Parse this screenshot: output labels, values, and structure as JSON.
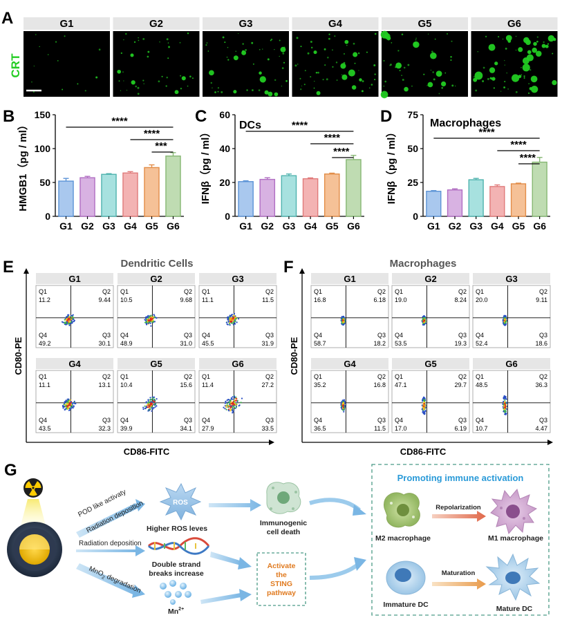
{
  "panel_letters": {
    "a": "A",
    "b": "B",
    "c": "C",
    "d": "D",
    "e": "E",
    "f": "F",
    "g": "G"
  },
  "panel_a": {
    "groups": [
      "G1",
      "G2",
      "G3",
      "G4",
      "G5",
      "G6"
    ],
    "channel_label": "CRT",
    "channel_color": "#22cc22",
    "cell_counts": [
      14,
      40,
      50,
      55,
      50,
      68
    ]
  },
  "colors": {
    "fills": [
      "#a9c8ee",
      "#d8b2e2",
      "#a7e1df",
      "#f3b3b3",
      "#f5c197",
      "#bfdcb2"
    ],
    "strokes": [
      "#5b93d6",
      "#b06dc2",
      "#4fb3ae",
      "#e07a7a",
      "#e28d48",
      "#86b773"
    ],
    "flow_box": "#f2f2f2",
    "dashed_green": "#4a9a86",
    "sting_orange": "#e07a1f",
    "title_blue": "#2a9ad8"
  },
  "chart_data": [
    {
      "type": "bar",
      "panel": "B",
      "title": "",
      "categories": [
        "G1",
        "G2",
        "G3",
        "G4",
        "G5",
        "G6"
      ],
      "values": [
        52,
        57,
        62,
        64,
        72,
        89
      ],
      "errors": [
        4,
        2,
        1,
        2,
        4,
        5
      ],
      "ylabel": "HMGB1（pg / ml）",
      "ylim": [
        0,
        150
      ],
      "yticks": [
        "0",
        "50",
        "100",
        "150"
      ],
      "significance": [
        {
          "from": 0,
          "to": 5,
          "label": "****"
        },
        {
          "from": 3,
          "to": 5,
          "label": "****"
        },
        {
          "from": 4,
          "to": 5,
          "label": "***"
        }
      ]
    },
    {
      "type": "bar",
      "panel": "C",
      "title": "DCs",
      "categories": [
        "G1",
        "G2",
        "G3",
        "G4",
        "G5",
        "G6"
      ],
      "values": [
        20.5,
        21.8,
        24,
        22.2,
        25,
        33.5
      ],
      "errors": [
        0.5,
        1,
        1,
        0.5,
        0.5,
        2.5
      ],
      "ylabel": "IFNβ（pg / ml）",
      "ylim": [
        0,
        60
      ],
      "yticks": [
        "0",
        "20",
        "40",
        "60"
      ],
      "significance": [
        {
          "from": 0,
          "to": 5,
          "label": "****"
        },
        {
          "from": 3,
          "to": 5,
          "label": "****"
        },
        {
          "from": 4,
          "to": 5,
          "label": "****"
        }
      ]
    },
    {
      "type": "bar",
      "panel": "D",
      "title": "Macrophages",
      "categories": [
        "G1",
        "G2",
        "G3",
        "G4",
        "G5",
        "G6"
      ],
      "values": [
        18.5,
        19.5,
        27,
        22,
        24,
        40
      ],
      "errors": [
        0.5,
        0.8,
        1,
        1.2,
        0.5,
        3.5
      ],
      "ylabel": "IFNβ（pg / ml）",
      "ylim": [
        0,
        75
      ],
      "yticks": [
        "0",
        "25",
        "50",
        "75"
      ],
      "significance": [
        {
          "from": 0,
          "to": 5,
          "label": "****"
        },
        {
          "from": 3,
          "to": 5,
          "label": "****"
        },
        {
          "from": 4,
          "to": 5,
          "label": "****"
        }
      ]
    },
    {
      "type": "scatter",
      "panel": "E",
      "title": "Dendritic Cells",
      "xlabel": "CD86-FITC",
      "ylabel": "CD80-PE",
      "quadrant_labels": [
        "Q1",
        "Q2",
        "Q3",
        "Q4"
      ],
      "plots": [
        {
          "group": "G1",
          "q1": "11.2",
          "q2": "9.44",
          "q3": "30.1",
          "q4": "49.2"
        },
        {
          "group": "G2",
          "q1": "10.5",
          "q2": "9.68",
          "q3": "31.0",
          "q4": "48.9"
        },
        {
          "group": "G3",
          "q1": "11.1",
          "q2": "11.5",
          "q3": "31.9",
          "q4": "45.5"
        },
        {
          "group": "G4",
          "q1": "11.1",
          "q2": "13.1",
          "q3": "32.3",
          "q4": "43.5"
        },
        {
          "group": "G5",
          "q1": "10.4",
          "q2": "15.6",
          "q3": "34.1",
          "q4": "39.9"
        },
        {
          "group": "G6",
          "q1": "11.4",
          "q2": "27.2",
          "q3": "33.5",
          "q4": "27.9"
        }
      ]
    },
    {
      "type": "scatter",
      "panel": "F",
      "title": "Macrophages",
      "xlabel": "CD86-FITC",
      "ylabel": "CD80-PE",
      "quadrant_labels": [
        "Q1",
        "Q2",
        "Q3",
        "Q4"
      ],
      "plots": [
        {
          "group": "G1",
          "q1": "16.8",
          "q2": "6.18",
          "q3": "18.2",
          "q4": "58.7"
        },
        {
          "group": "G2",
          "q1": "19.0",
          "q2": "8.24",
          "q3": "19.3",
          "q4": "53.5"
        },
        {
          "group": "G3",
          "q1": "20.0",
          "q2": "9.11",
          "q3": "18.6",
          "q4": "52.4"
        },
        {
          "group": "G4",
          "q1": "35.2",
          "q2": "16.8",
          "q3": "11.5",
          "q4": "36.5"
        },
        {
          "group": "G5",
          "q1": "47.1",
          "q2": "29.7",
          "q3": "6.19",
          "q4": "17.0"
        },
        {
          "group": "G6",
          "q1": "48.5",
          "q2": "36.3",
          "q3": "4.47",
          "q4": "10.7"
        }
      ]
    }
  ],
  "panel_g": {
    "pod": "POD like activaty",
    "rad_dep1": "Radiation deposition",
    "rad_dep2": "Radiation deposition",
    "mno2_a": "MnO",
    "mno2_sub": "2",
    "mno2_b": " degradation",
    "ros": "ROS",
    "ros_caption": "Higher ROS leves",
    "icd1": "Immunogenic",
    "icd2": "cell death",
    "dsb1": "Double strand",
    "dsb2": "breaks increase",
    "mn": "Mn",
    "mn_sup": "2+",
    "sting1": "Activate",
    "sting2": "the",
    "sting3": "STING",
    "sting4": "pathway",
    "box_title": "Promoting immune activation",
    "repolarization": "Repolarization",
    "m2": "M2 macrophage",
    "m1": "M1 macrophage",
    "maturation": "Maturation",
    "immature": "Immature DC",
    "mature": "Mature DC"
  }
}
